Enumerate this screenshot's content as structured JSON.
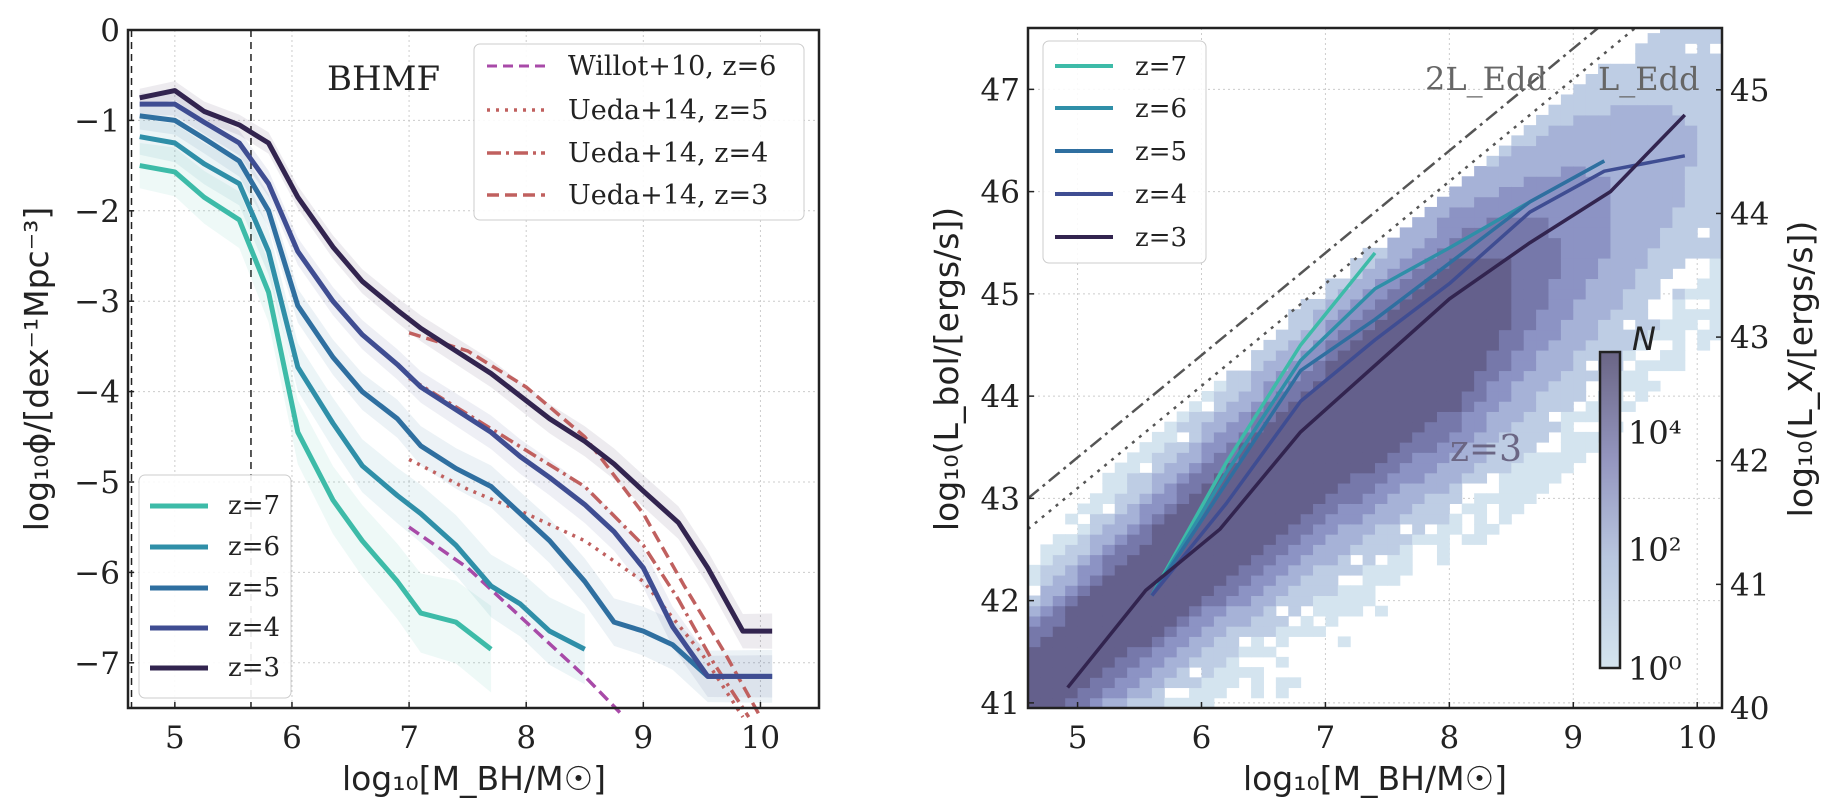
{
  "chart_data": [
    {
      "type": "line",
      "panel": "left",
      "annotation": "BHMF",
      "xlabel": "log₁₀[M_BH/M☉]",
      "ylabel": "log₁₀ϕ/[dex⁻¹Mpc⁻³]",
      "xlim": [
        4.6,
        10.5
      ],
      "ylim": [
        -7.5,
        0
      ],
      "x_ticks": [
        5,
        6,
        7,
        8,
        9,
        10
      ],
      "y_ticks": [
        0,
        -1,
        -2,
        -3,
        -4,
        -5,
        -6,
        -7
      ],
      "x_tick_labels": [
        "5",
        "6",
        "7",
        "8",
        "9",
        "10"
      ],
      "y_tick_labels": [
        "0",
        "−1",
        "−2",
        "−3",
        "−4",
        "−5",
        "−6",
        "−7"
      ],
      "grid": true,
      "vlines": [
        4.63,
        5.65
      ],
      "series": [
        {
          "name": "z=7",
          "color": "#3dbba8",
          "x": [
            4.7,
            5.0,
            5.25,
            5.55,
            5.8,
            6.05,
            6.35,
            6.6,
            6.9,
            7.1,
            7.4,
            7.7
          ],
          "y": [
            -1.5,
            -1.57,
            -1.85,
            -2.1,
            -2.9,
            -4.45,
            -5.2,
            -5.65,
            -6.1,
            -6.45,
            -6.55,
            -6.85
          ],
          "band": 0.25
        },
        {
          "name": "z=6",
          "color": "#2f8fa8",
          "x": [
            4.7,
            5.0,
            5.25,
            5.55,
            5.8,
            6.05,
            6.35,
            6.6,
            6.9,
            7.1,
            7.4,
            7.7,
            7.95,
            8.2,
            8.5
          ],
          "y": [
            -1.18,
            -1.25,
            -1.48,
            -1.7,
            -2.45,
            -3.73,
            -4.35,
            -4.82,
            -5.15,
            -5.35,
            -5.7,
            -6.15,
            -6.35,
            -6.65,
            -6.85
          ],
          "band": 0.2
        },
        {
          "name": "z=5",
          "color": "#2f6fa0",
          "x": [
            4.7,
            5.0,
            5.25,
            5.55,
            5.8,
            6.05,
            6.35,
            6.6,
            6.9,
            7.1,
            7.4,
            7.7,
            7.95,
            8.2,
            8.5,
            8.75,
            9.0,
            9.25,
            9.55,
            10.1
          ],
          "y": [
            -0.95,
            -1.0,
            -1.2,
            -1.45,
            -2.0,
            -3.05,
            -3.62,
            -4.0,
            -4.3,
            -4.6,
            -4.85,
            -5.05,
            -5.35,
            -5.65,
            -6.1,
            -6.55,
            -6.65,
            -6.8,
            -7.15,
            -7.15
          ],
          "band": 0.15
        },
        {
          "name": "z=4",
          "color": "#3f4d92",
          "x": [
            4.7,
            5.0,
            5.25,
            5.55,
            5.8,
            6.05,
            6.35,
            6.6,
            6.9,
            7.1,
            7.4,
            7.7,
            7.95,
            8.2,
            8.5,
            8.75,
            9.0,
            9.25,
            9.55,
            10.1
          ],
          "y": [
            -0.82,
            -0.82,
            -1.02,
            -1.25,
            -1.7,
            -2.45,
            -3.0,
            -3.37,
            -3.7,
            -3.95,
            -4.2,
            -4.45,
            -4.72,
            -4.95,
            -5.25,
            -5.55,
            -5.95,
            -6.6,
            -7.15,
            -7.15
          ],
          "band": 0.12
        },
        {
          "name": "z=3",
          "color": "#32244f",
          "x": [
            4.7,
            5.0,
            5.25,
            5.55,
            5.8,
            6.05,
            6.35,
            6.6,
            6.9,
            7.1,
            7.4,
            7.7,
            7.95,
            8.2,
            8.5,
            8.75,
            9.0,
            9.3,
            9.55,
            9.85,
            10.1
          ],
          "y": [
            -0.75,
            -0.67,
            -0.9,
            -1.05,
            -1.25,
            -1.85,
            -2.4,
            -2.78,
            -3.1,
            -3.3,
            -3.55,
            -3.8,
            -4.05,
            -4.3,
            -4.55,
            -4.8,
            -5.1,
            -5.45,
            -5.95,
            -6.65,
            -6.65
          ],
          "band": 0.1
        }
      ],
      "reference_curves": [
        {
          "name": "Willot+10, z=6",
          "color": "#a84aa8",
          "style": "dashed",
          "x": [
            7.0,
            7.5,
            8.0,
            8.5,
            8.8
          ],
          "y": [
            -5.5,
            -5.95,
            -6.55,
            -7.15,
            -7.55
          ]
        },
        {
          "name": "Ueda+14, z=5",
          "color": "#c0605f",
          "style": "dotted",
          "x": [
            7.0,
            7.5,
            8.0,
            8.5,
            9.0,
            9.5,
            9.85
          ],
          "y": [
            -4.75,
            -5.08,
            -5.35,
            -5.65,
            -6.1,
            -6.9,
            -7.6
          ]
        },
        {
          "name": "Ueda+14, z=4",
          "color": "#c0605f",
          "style": "dashdot",
          "x": [
            7.0,
            7.5,
            8.0,
            8.5,
            9.0,
            9.3,
            9.6,
            9.9
          ],
          "y": [
            -3.85,
            -4.25,
            -4.65,
            -5.05,
            -5.7,
            -6.3,
            -7.0,
            -7.6
          ]
        },
        {
          "name": "Ueda+14, z=3",
          "color": "#c0605f",
          "style": "dashed",
          "x": [
            7.0,
            7.5,
            8.0,
            8.5,
            9.0,
            9.35,
            9.7,
            10.0
          ],
          "y": [
            -3.35,
            -3.55,
            -3.95,
            -4.5,
            -5.35,
            -6.15,
            -6.9,
            -7.6
          ]
        }
      ]
    },
    {
      "type": "line+heatmap",
      "panel": "right",
      "annotation": "z=3",
      "xlabel": "log₁₀[M_BH/M☉]",
      "ylabel": "log₁₀(L_bol/[ergs/s])",
      "ylabel_right": "log₁₀(L_X/[ergs/s])",
      "xlim": [
        4.6,
        10.2
      ],
      "ylim": [
        40.95,
        47.6
      ],
      "ylim_right": [
        40,
        45.5
      ],
      "x_ticks": [
        5,
        6,
        7,
        8,
        9,
        10
      ],
      "y_ticks": [
        41,
        42,
        43,
        44,
        45,
        46,
        47
      ],
      "y_ticks_right": [
        40,
        41,
        42,
        43,
        44,
        45
      ],
      "x_tick_labels": [
        "5",
        "6",
        "7",
        "8",
        "9",
        "10"
      ],
      "y_tick_labels": [
        "41",
        "42",
        "43",
        "44",
        "45",
        "46",
        "47"
      ],
      "y_tick_labels_right": [
        "40",
        "41",
        "42",
        "43",
        "44",
        "45"
      ],
      "grid": true,
      "eddington_lines": [
        {
          "label": "2L_Edd",
          "color": "#555555",
          "style": "dashdot",
          "offset": 38.4
        },
        {
          "label": "L_Edd",
          "color": "#555555",
          "style": "dotted",
          "offset": 38.1
        }
      ],
      "colorbar": {
        "label": "N",
        "tick_labels": [
          "10⁰",
          "10²",
          "10⁴"
        ],
        "log10_range": [
          0,
          5.5
        ]
      },
      "series": [
        {
          "name": "z=7",
          "color": "#3dbba8",
          "x": [
            5.6,
            6.2,
            6.8,
            7.4
          ],
          "y": [
            42.05,
            43.35,
            44.5,
            45.4
          ]
        },
        {
          "name": "z=6",
          "color": "#2f8fa8",
          "x": [
            5.6,
            6.2,
            6.8,
            7.4,
            8.0,
            8.65,
            9.25
          ],
          "y": [
            42.05,
            43.25,
            44.35,
            45.05,
            45.45,
            45.9,
            46.3
          ]
        },
        {
          "name": "z=5",
          "color": "#2f6fa0",
          "x": [
            5.6,
            6.2,
            6.8,
            7.4,
            8.0,
            8.65,
            9.25
          ],
          "y": [
            42.05,
            43.15,
            44.25,
            44.75,
            45.3,
            45.9,
            46.3
          ]
        },
        {
          "name": "z=4",
          "color": "#3f4d92",
          "x": [
            5.6,
            6.2,
            6.8,
            7.4,
            8.0,
            8.65,
            9.25,
            9.9
          ],
          "y": [
            42.05,
            42.95,
            43.95,
            44.55,
            45.1,
            45.8,
            46.2,
            46.35
          ]
        },
        {
          "name": "z=3",
          "color": "#32244f",
          "x": [
            4.92,
            5.55,
            6.15,
            6.8,
            7.4,
            8.0,
            8.65,
            9.3,
            9.9
          ],
          "y": [
            41.15,
            42.1,
            42.7,
            43.65,
            44.3,
            44.95,
            45.5,
            46.0,
            46.75
          ]
        }
      ]
    }
  ]
}
